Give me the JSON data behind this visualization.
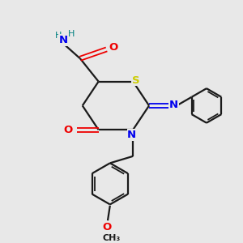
{
  "bg_color": "#e8e8e8",
  "bond_color": "#1a1a1a",
  "S_color": "#cccc00",
  "N_color": "#0000ee",
  "O_color": "#ee0000",
  "H_color": "#008080",
  "figsize": [
    3.0,
    3.0
  ],
  "dpi": 100,
  "xlim": [
    0,
    10
  ],
  "ylim": [
    0,
    10
  ]
}
